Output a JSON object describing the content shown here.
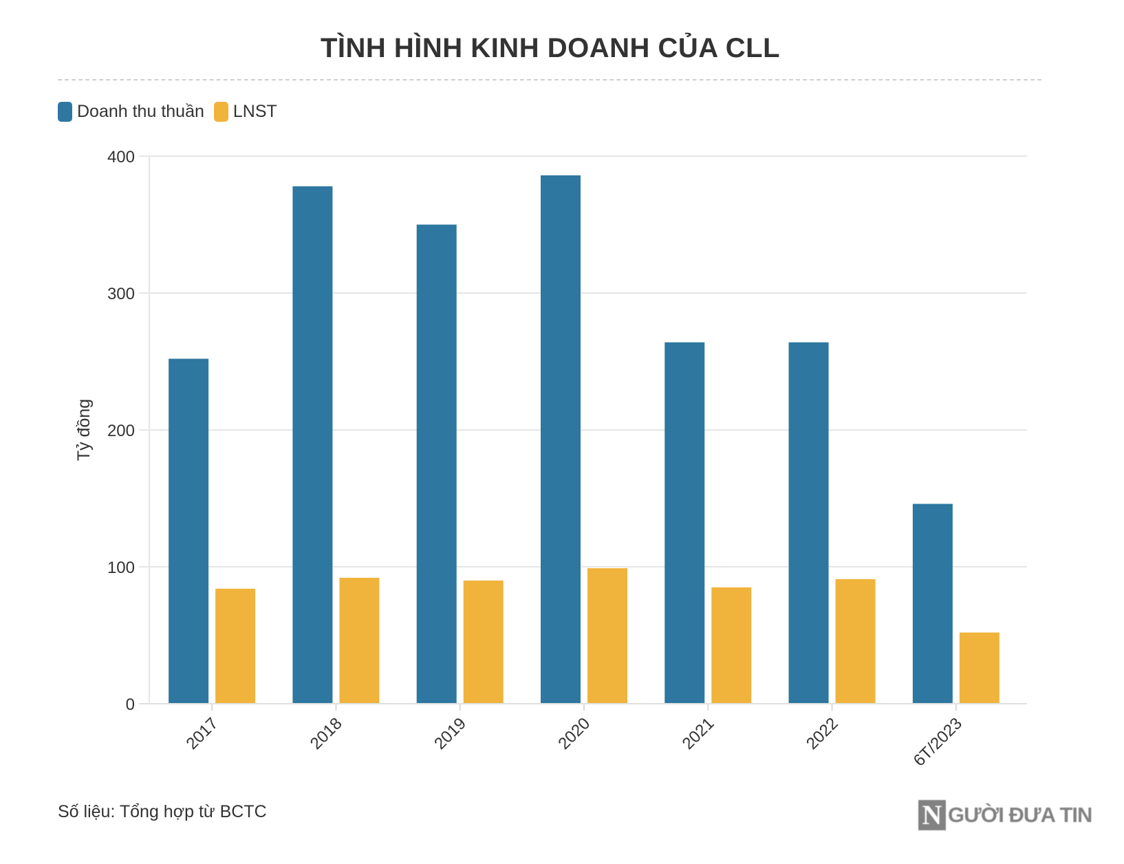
{
  "chart_data": {
    "type": "bar",
    "title": "TÌNH HÌNH KINH DOANH CỦA CLL",
    "xlabel": "",
    "ylabel": "Tỷ đồng",
    "ylim": [
      0,
      400
    ],
    "yticks": [
      0,
      100,
      200,
      300,
      400
    ],
    "grid": true,
    "legend_position": "top-left",
    "categories": [
      "2017",
      "2018",
      "2019",
      "2020",
      "2021",
      "2022",
      "6T/2023"
    ],
    "series": [
      {
        "name": "Doanh thu thuần",
        "color": "#2d77a0",
        "values": [
          252,
          378,
          350,
          386,
          264,
          264,
          146
        ]
      },
      {
        "name": "LNST",
        "color": "#f0b33c",
        "values": [
          84,
          92,
          90,
          99,
          85,
          91,
          52
        ]
      }
    ]
  },
  "footer": {
    "source": "Số liệu: Tổng hợp từ BCTC",
    "logo_mark": "N",
    "logo_text": "GƯỜI ĐƯA TIN"
  }
}
